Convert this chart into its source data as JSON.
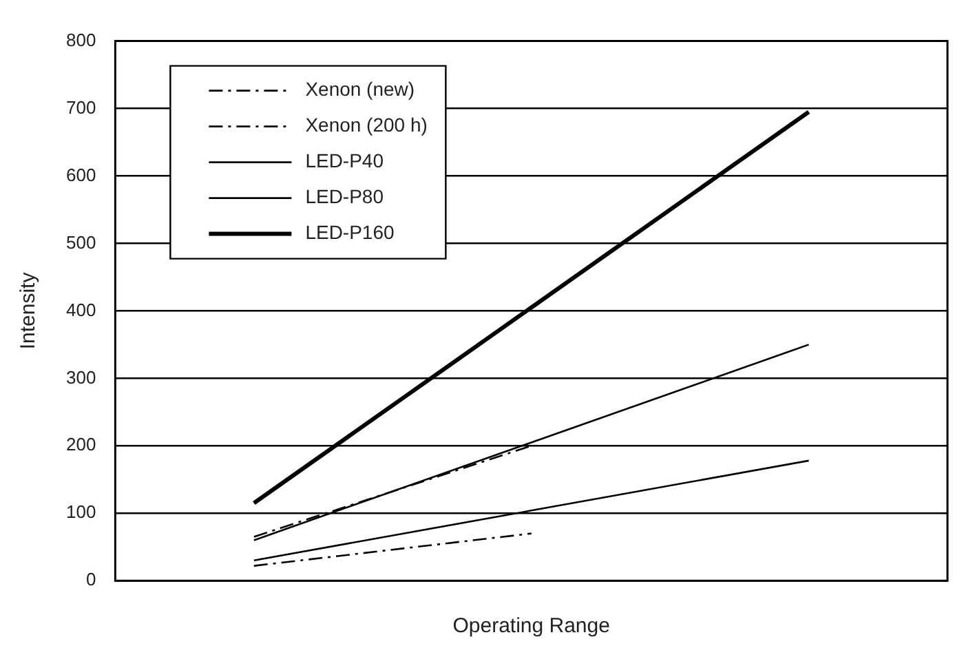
{
  "chart_data": {
    "type": "line",
    "xlabel": "Operating Range",
    "ylabel": "Intensity",
    "categories": [
      null,
      null,
      null
    ],
    "series": [
      {
        "name": "Xenon (new)",
        "color": "#000000",
        "line_style": "dashed",
        "values": [
          65,
          200,
          null
        ]
      },
      {
        "name": "Xenon (200 h)",
        "color": "#000000",
        "line_style": "dashed",
        "values": [
          22,
          70,
          null
        ]
      },
      {
        "name": "LED-P40",
        "color": "#000000",
        "values": [
          30,
          104,
          178
        ]
      },
      {
        "name": "LED-P80",
        "color": "#000000",
        "values": [
          60,
          205,
          350
        ]
      },
      {
        "name": "LED-P160",
        "color": "#000000",
        "values": [
          115,
          405,
          695
        ]
      }
    ],
    "ylim": [
      0,
      800
    ],
    "yticks": [
      0,
      100,
      200,
      300,
      400,
      500,
      600,
      700,
      800
    ],
    "grid": "y",
    "legend": "top left",
    "marker": "none"
  }
}
